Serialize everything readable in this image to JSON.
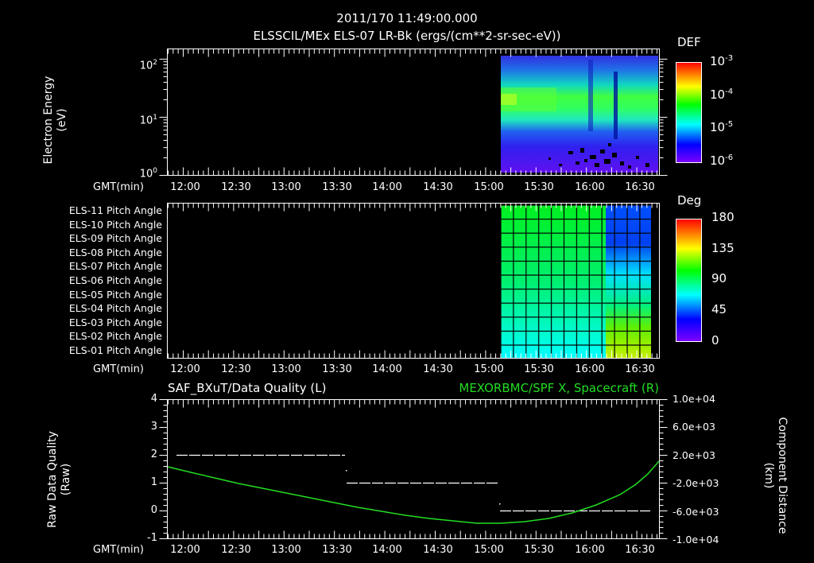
{
  "header": {
    "timestamp": "2011/170 11:49:00.000",
    "subtitle": "ELSSCIL/MEx ELS-07 LR-Bk  (ergs/(cm**2-sr-sec-eV))"
  },
  "panel1": {
    "ylabel_line1": "Electron Energy",
    "ylabel_line2": "(eV)",
    "yticks": [
      {
        "base": "10",
        "exp": "2"
      },
      {
        "base": "10",
        "exp": "1"
      },
      {
        "base": "10",
        "exp": "0"
      }
    ],
    "xlabel": "GMT(min)",
    "colorbar": {
      "title": "DEF",
      "ticks": [
        {
          "base": "10",
          "exp": "-3"
        },
        {
          "base": "10",
          "exp": "-4"
        },
        {
          "base": "10",
          "exp": "-5"
        },
        {
          "base": "10",
          "exp": "-6"
        }
      ]
    }
  },
  "panel2": {
    "row_labels": [
      "ELS-11 Pitch Angle",
      "ELS-10 Pitch Angle",
      "ELS-09 Pitch Angle",
      "ELS-08 Pitch Angle",
      "ELS-07 Pitch Angle",
      "ELS-06 Pitch Angle",
      "ELS-05 Pitch Angle",
      "ELS-04 Pitch Angle",
      "ELS-03 Pitch Angle",
      "ELS-02 Pitch Angle",
      "ELS-01 Pitch Angle"
    ],
    "xlabel": "GMT(min)",
    "colorbar": {
      "title": "Deg",
      "ticks": [
        "180",
        "135",
        "90",
        "45",
        "0"
      ]
    }
  },
  "panel3": {
    "left_title": "SAF_BXuT/Data Quality (L)",
    "right_title": "MEXORBMC/SPF X, Spacecraft (R)",
    "right_title_color": "#22dd22",
    "ylabel_left_line1": "Raw Data Quality",
    "ylabel_left_line2": "(Raw)",
    "ylabel_right_line1": "Component Distance",
    "ylabel_right_line2": "(km)",
    "yticks_left": [
      "4",
      "3",
      "2",
      "1",
      "0",
      "-1"
    ],
    "yticks_right": [
      "1.0e+04",
      "6.0e+03",
      "2.0e+03",
      "-2.0e+03",
      "-6.0e+03",
      "-1.0e+04"
    ],
    "xlabel": "GMT(min)"
  },
  "xticks": [
    "12:00",
    "12:30",
    "13:00",
    "13:30",
    "14:00",
    "14:30",
    "15:00",
    "15:30",
    "16:00",
    "16:30"
  ],
  "chart_data": [
    {
      "type": "heatmap",
      "title": "ELSSCIL/MEx ELS-07 LR-Bk (ergs/(cm**2-sr-sec-eV))",
      "xlabel": "GMT(min)",
      "ylabel": "Electron Energy (eV)",
      "yscale": "log",
      "ylim": [
        1,
        150
      ],
      "xlim": [
        "11:49",
        "16:45"
      ],
      "data_start": "15:07",
      "colorbar": {
        "label": "DEF",
        "scale": "log",
        "range": [
          1e-06,
          0.001
        ]
      },
      "description": "Spectrogram: green band 10-40 eV peak at 15:07-15:35, dropout near 16:12, low-energy purple/black below 3 eV"
    },
    {
      "type": "heatmap",
      "title": "Pitch Angle",
      "xlabel": "GMT(min)",
      "rows": [
        "ELS-11",
        "ELS-10",
        "ELS-09",
        "ELS-08",
        "ELS-07",
        "ELS-06",
        "ELS-05",
        "ELS-04",
        "ELS-03",
        "ELS-02",
        "ELS-01"
      ],
      "xlim": [
        "11:49",
        "16:45"
      ],
      "data_start": "15:07",
      "colorbar": {
        "label": "Deg",
        "range": [
          0,
          180
        ]
      },
      "description": "Pitch angles ~95-100 deg for top rows down to ~70 for bottom rows before 16:10; after 16:10 top rows ~30-50 deg, bottom rows ~120-130 deg"
    },
    {
      "type": "line",
      "title": "SAF_BXuT/Data Quality (L) / MEXORBMC/SPF X, Spacecraft (R)",
      "xlabel": "GMT(min)",
      "series": [
        {
          "name": "Data Quality",
          "axis": "left",
          "color": "#ffffff",
          "style": "dashed",
          "x": [
            "11:55",
            "13:35",
            "13:36",
            "15:05",
            "15:07",
            "16:40"
          ],
          "values": [
            2,
            2,
            1,
            1,
            0,
            0
          ]
        },
        {
          "name": "SPF X Spacecraft",
          "axis": "right",
          "color": "#22dd22",
          "style": "solid",
          "x": [
            "11:49",
            "12:30",
            "13:00",
            "13:30",
            "14:00",
            "14:30",
            "15:00",
            "15:30",
            "16:00",
            "16:30",
            "16:45"
          ],
          "values": [
            -3000,
            -4500,
            -5600,
            -6600,
            -7500,
            -8200,
            -8300,
            -7500,
            -5200,
            -800,
            1800
          ]
        }
      ],
      "ylim_left": [
        -1,
        4
      ],
      "ylim_right": [
        -10000,
        10000
      ]
    }
  ]
}
